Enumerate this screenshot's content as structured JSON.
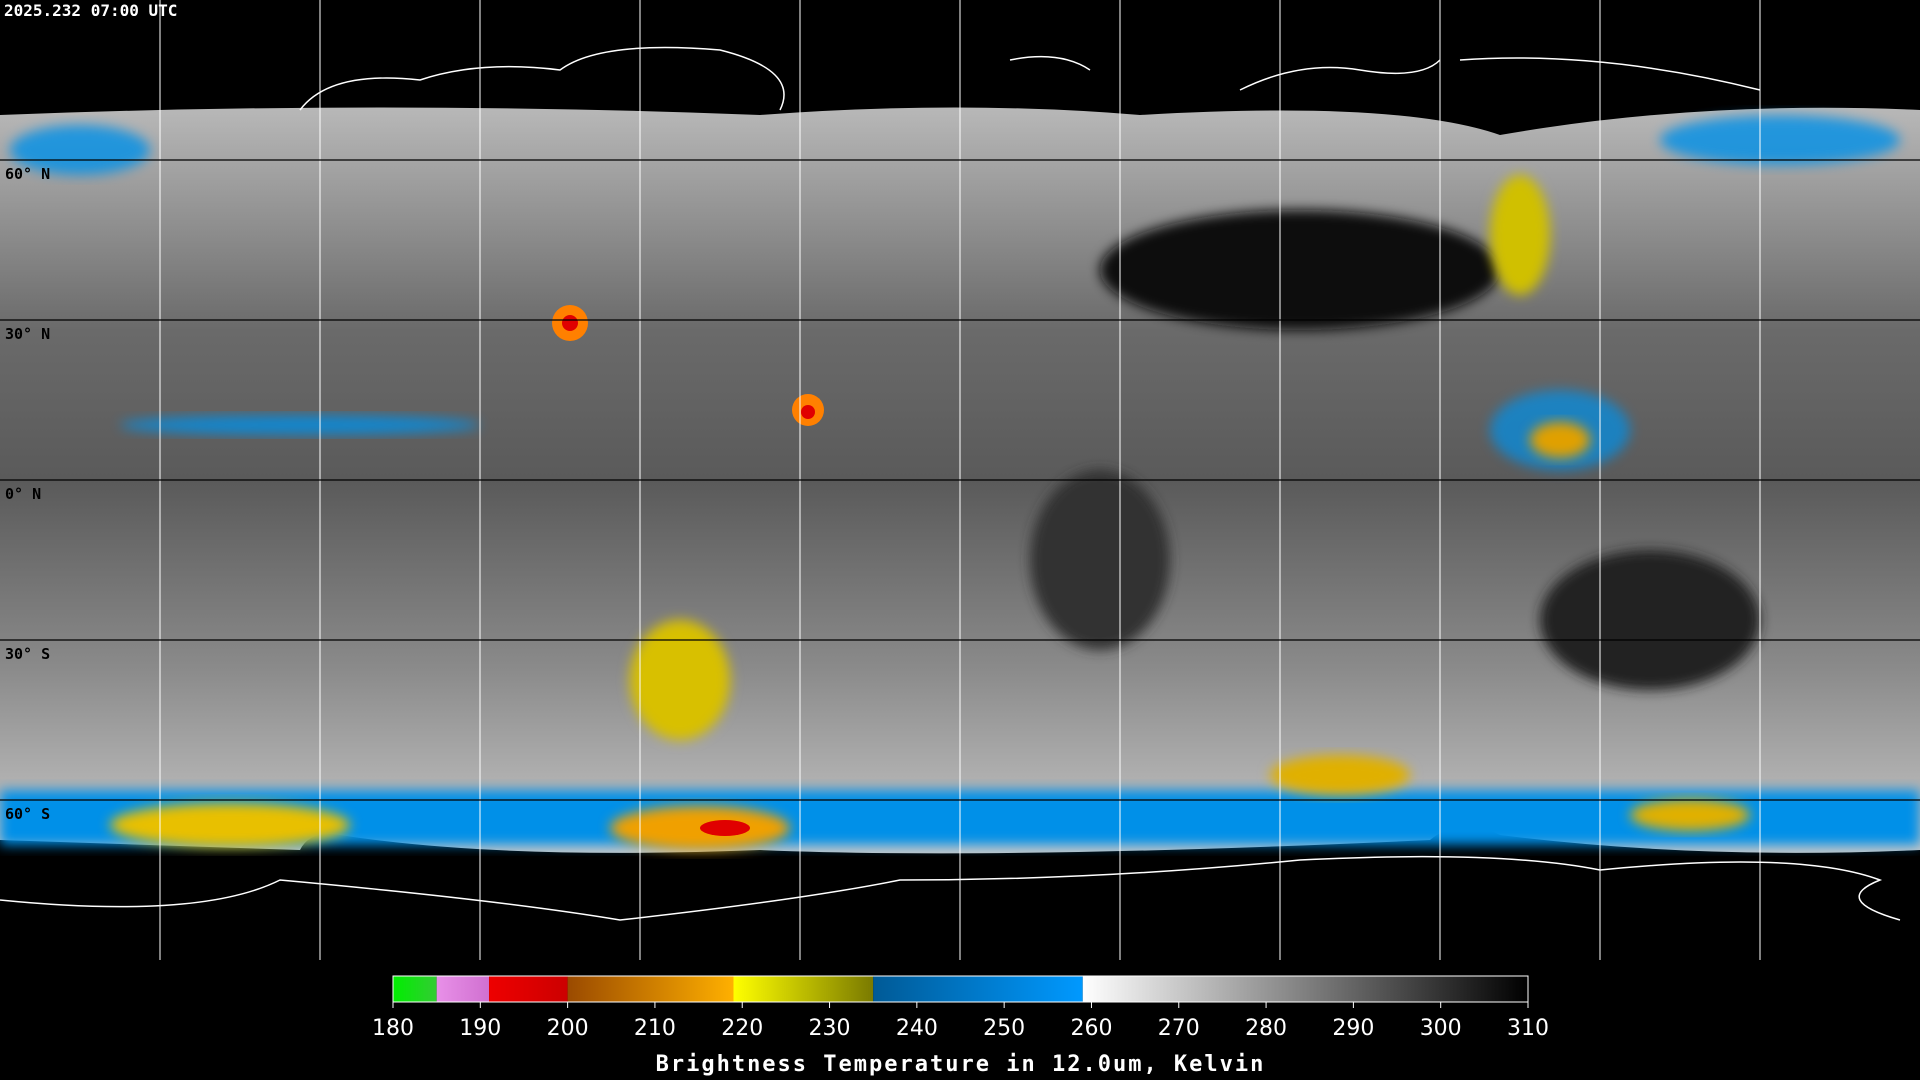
{
  "header": {
    "timestamp": "2025.232 07:00 UTC"
  },
  "map": {
    "lat_range": [
      -90,
      90
    ],
    "lat_lines": [
      {
        "value": 60,
        "label": "60° N"
      },
      {
        "value": 30,
        "label": "30° N"
      },
      {
        "value": 0,
        "label": "0° N"
      },
      {
        "value": -30,
        "label": "30° S"
      },
      {
        "value": -60,
        "label": "60° S"
      }
    ]
  },
  "colorbar": {
    "range": [
      180,
      310
    ],
    "ticks": [
      180,
      190,
      200,
      210,
      220,
      230,
      240,
      250,
      260,
      270,
      280,
      290,
      300,
      310
    ],
    "segments": [
      {
        "from": 180,
        "to": 185,
        "color_start": "#00ee00",
        "color_end": "#33cc33"
      },
      {
        "from": 185,
        "to": 191,
        "color_start": "#e890e8",
        "color_end": "#d070d0"
      },
      {
        "from": 191,
        "to": 200,
        "color_start": "#ee0000",
        "color_end": "#cc0000"
      },
      {
        "from": 200,
        "to": 219,
        "color_start": "#9a4a00",
        "color_end": "#ffb000"
      },
      {
        "from": 219,
        "to": 235,
        "color_start": "#ffff00",
        "color_end": "#7a7a00"
      },
      {
        "from": 235,
        "to": 259,
        "color_start": "#005a96",
        "color_end": "#0099ff"
      },
      {
        "from": 259,
        "to": 310,
        "color_start": "#ffffff",
        "color_end": "#000000"
      }
    ],
    "title": "Brightness Temperature in 12.0um, Kelvin"
  }
}
